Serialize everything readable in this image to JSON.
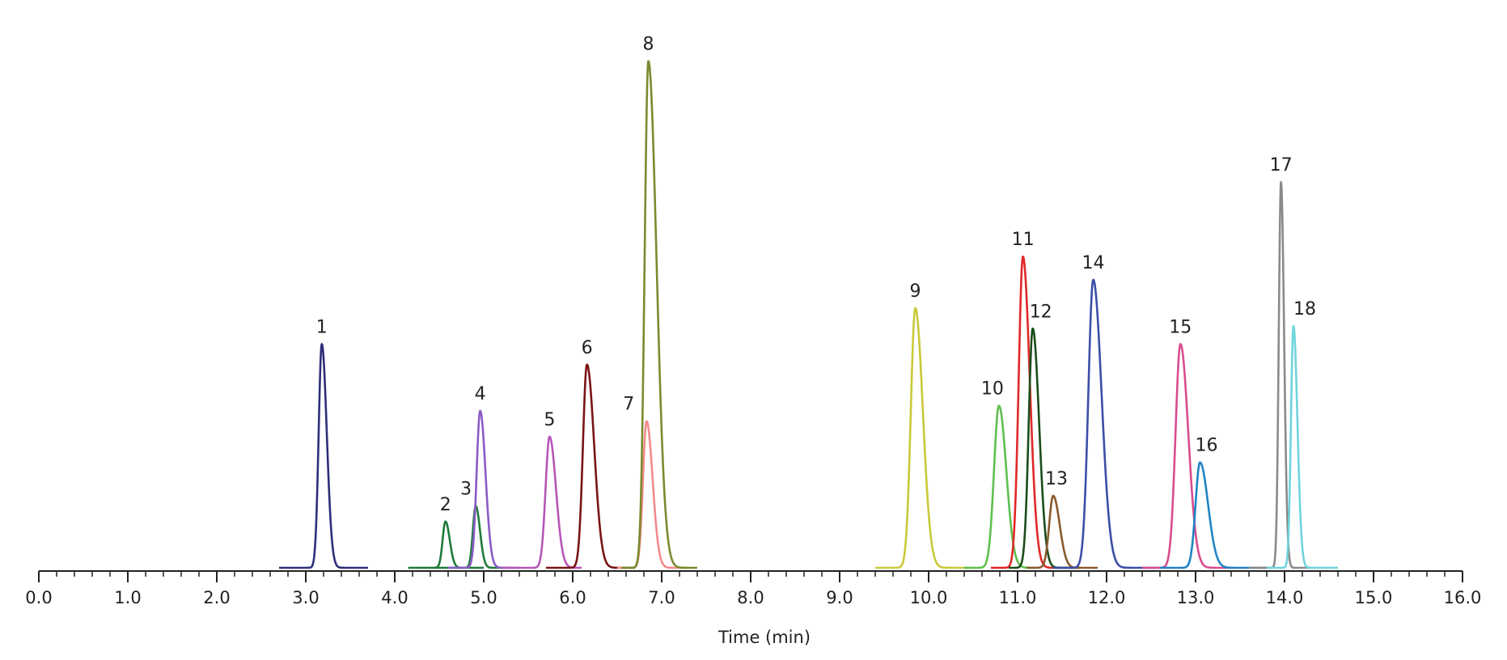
{
  "chart_data": {
    "type": "line",
    "title": "",
    "xlabel": "Time (min)",
    "ylabel": "",
    "xlim": [
      0,
      16
    ],
    "ylim": [
      0,
      100
    ],
    "grid": false,
    "legend": "none",
    "x_ticks": [
      "0.0",
      "1.0",
      "2.0",
      "3.0",
      "4.0",
      "5.0",
      "6.0",
      "7.0",
      "8.0",
      "9.0",
      "10.0",
      "11.0",
      "12.0",
      "13.0",
      "14.0",
      "15.0",
      "16.0"
    ],
    "x_minor_step": 0.2,
    "peaks": [
      {
        "label": "1",
        "rt": 3.18,
        "height": 43.5,
        "sigma": 0.035,
        "tail": 1.6,
        "range": [
          2.7,
          3.7
        ],
        "color": "#2e2e7a"
      },
      {
        "label": "2",
        "rt": 4.57,
        "height": 9.0,
        "sigma": 0.032,
        "tail": 1.5,
        "range": [
          4.15,
          5.0
        ],
        "color": "#1f7a3a"
      },
      {
        "label": "3",
        "rt": 4.91,
        "height": 12.0,
        "sigma": 0.032,
        "tail": 1.5,
        "range": [
          4.45,
          5.3
        ],
        "color": "#1f7a3a"
      },
      {
        "label": "4",
        "rt": 4.96,
        "height": 30.5,
        "sigma": 0.04,
        "tail": 1.5,
        "range": [
          4.6,
          5.4
        ],
        "color": "#8a5cc4"
      },
      {
        "label": "5",
        "rt": 5.74,
        "height": 25.5,
        "sigma": 0.045,
        "tail": 1.6,
        "range": [
          5.2,
          6.1
        ],
        "color": "#b657b8"
      },
      {
        "label": "6",
        "rt": 6.16,
        "height": 39.5,
        "sigma": 0.045,
        "tail": 1.8,
        "range": [
          5.7,
          6.7
        ],
        "color": "#7a1414"
      },
      {
        "label": "7",
        "rt": 6.83,
        "height": 28.5,
        "sigma": 0.04,
        "tail": 1.7,
        "range": [
          6.5,
          7.3
        ],
        "color": "#f28a8a"
      },
      {
        "label": "8",
        "rt": 6.85,
        "height": 98.5,
        "sigma": 0.042,
        "tail": 2.2,
        "range": [
          6.55,
          7.4
        ],
        "color": "#7a8a2e"
      },
      {
        "label": "9",
        "rt": 9.85,
        "height": 50.5,
        "sigma": 0.05,
        "tail": 1.7,
        "range": [
          9.4,
          10.5
        ],
        "color": "#c9c93a"
      },
      {
        "label": "10",
        "rt": 10.79,
        "height": 31.5,
        "sigma": 0.055,
        "tail": 1.5,
        "range": [
          10.4,
          11.2
        ],
        "color": "#5fbf4f"
      },
      {
        "label": "11",
        "rt": 11.06,
        "height": 60.5,
        "sigma": 0.048,
        "tail": 1.6,
        "range": [
          10.7,
          11.7
        ],
        "color": "#e02828"
      },
      {
        "label": "12",
        "rt": 11.17,
        "height": 46.5,
        "sigma": 0.045,
        "tail": 1.6,
        "range": [
          10.9,
          11.7
        ],
        "color": "#1a4d1a"
      },
      {
        "label": "13",
        "rt": 11.4,
        "height": 14.0,
        "sigma": 0.045,
        "tail": 1.6,
        "range": [
          11.1,
          11.9
        ],
        "color": "#8a5a2e"
      },
      {
        "label": "14",
        "rt": 11.85,
        "height": 56.0,
        "sigma": 0.055,
        "tail": 1.7,
        "range": [
          11.4,
          12.6
        ],
        "color": "#3a4fa8"
      },
      {
        "label": "15",
        "rt": 12.83,
        "height": 43.5,
        "sigma": 0.055,
        "tail": 1.6,
        "range": [
          12.4,
          13.4
        ],
        "color": "#d94c8f"
      },
      {
        "label": "16",
        "rt": 13.05,
        "height": 20.5,
        "sigma": 0.05,
        "tail": 1.8,
        "range": [
          12.6,
          13.8
        ],
        "color": "#1f84c4"
      },
      {
        "label": "17",
        "rt": 13.96,
        "height": 75.0,
        "sigma": 0.025,
        "tail": 1.4,
        "range": [
          13.6,
          14.3
        ],
        "color": "#8a8a8a"
      },
      {
        "label": "18",
        "rt": 14.1,
        "height": 47.0,
        "sigma": 0.028,
        "tail": 1.6,
        "range": [
          13.8,
          14.6
        ],
        "color": "#6fd4dc"
      }
    ]
  }
}
